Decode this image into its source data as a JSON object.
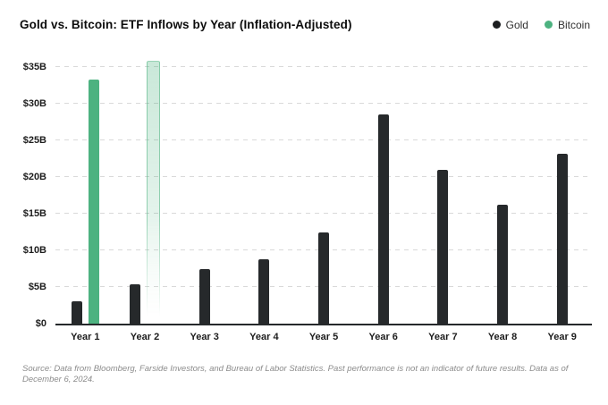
{
  "header": {
    "title": "Gold vs. Bitcoin: ETF Inflows by Year (Inflation-Adjusted)"
  },
  "legend": {
    "items": [
      {
        "label": "Gold",
        "color": "#1c1e20"
      },
      {
        "label": "Bitcoin",
        "color": "#4db280"
      }
    ]
  },
  "chart_data": {
    "type": "bar",
    "title": "Gold vs. Bitcoin: ETF Inflows by Year (Inflation-Adjusted)",
    "categories": [
      "Year 1",
      "Year 2",
      "Year 3",
      "Year 4",
      "Year 5",
      "Year 6",
      "Year 7",
      "Year 8",
      "Year 9"
    ],
    "series": [
      {
        "name": "Gold",
        "color": "#26292b",
        "values": [
          3.0,
          5.4,
          7.4,
          8.8,
          12.5,
          28.6,
          21.0,
          16.2,
          23.2
        ]
      },
      {
        "name": "Bitcoin",
        "color": "#4db280",
        "values": [
          33.3,
          35.7,
          null,
          null,
          null,
          null,
          null,
          null,
          null
        ],
        "bar_styles": [
          "solid",
          "projected-faded",
          null,
          null,
          null,
          null,
          null,
          null,
          null
        ]
      }
    ],
    "y_ticks": [
      {
        "value": 0,
        "label": "$0"
      },
      {
        "value": 5,
        "label": "$5B"
      },
      {
        "value": 10,
        "label": "$10B"
      },
      {
        "value": 15,
        "label": "$15B"
      },
      {
        "value": 20,
        "label": "$20B"
      },
      {
        "value": 25,
        "label": "$25B"
      },
      {
        "value": 30,
        "label": "$30B"
      },
      {
        "value": 35,
        "label": "$35B"
      }
    ],
    "ylim": [
      0,
      36.6
    ],
    "xlabel": "",
    "ylabel": "",
    "grid": "horizontal-dashed",
    "legend_position": "top-right"
  },
  "footer": {
    "source_note": "Source: Data from Bloomberg, Farside Investors, and Bureau of Labor Statistics. Past performance is not an indicator of future results. Data as of December 6, 2024."
  }
}
